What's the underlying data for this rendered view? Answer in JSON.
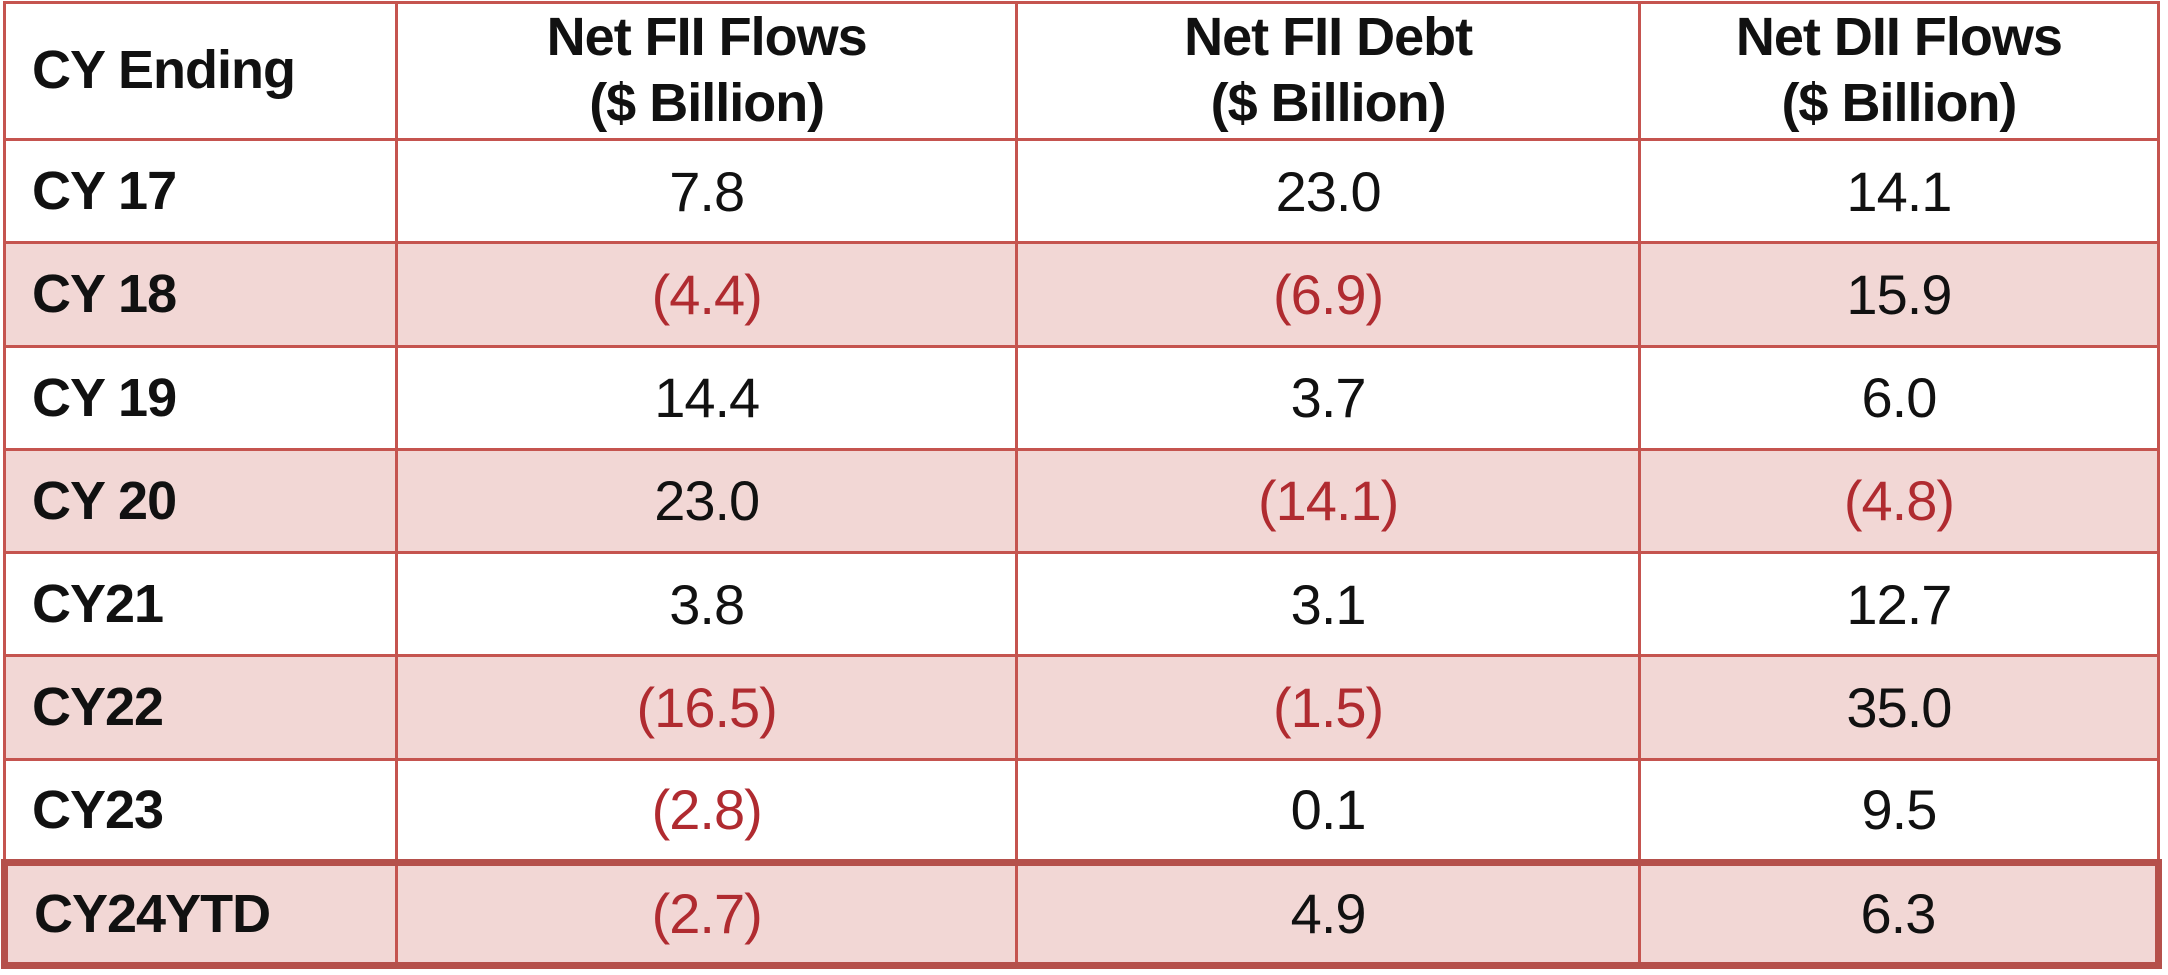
{
  "colors": {
    "grid": "#C5544F",
    "row_tint": "#F2D7D5",
    "negative": "#B02B30",
    "outline_thick": "#B5504B",
    "text": "#111111",
    "background": "#FFFFFF"
  },
  "table": {
    "headers": {
      "cy_ending": "CY Ending",
      "fii_flows_line1": "Net FII Flows",
      "fii_flows_line2": "($ Billion)",
      "fii_debt_line1": "Net FII Debt",
      "fii_debt_line2": "($ Billion)",
      "dii_flows_line1": "Net DII Flows",
      "dii_flows_line2": "($ Billion)"
    },
    "rows": [
      {
        "year": "CY 17",
        "fii_flows": "7.8",
        "fii_debt": "23.0",
        "dii_flows": "14.1"
      },
      {
        "year": "CY 18",
        "fii_flows": "(4.4)",
        "fii_debt": "(6.9)",
        "dii_flows": "15.9"
      },
      {
        "year": "CY 19",
        "fii_flows": "14.4",
        "fii_debt": "3.7",
        "dii_flows": "6.0"
      },
      {
        "year": "CY 20",
        "fii_flows": "23.0",
        "fii_debt": "(14.1)",
        "dii_flows": "(4.8)"
      },
      {
        "year": "CY21",
        "fii_flows": "3.8",
        "fii_debt": "3.1",
        "dii_flows": "12.7"
      },
      {
        "year": "CY22",
        "fii_flows": "(16.5)",
        "fii_debt": "(1.5)",
        "dii_flows": "35.0"
      },
      {
        "year": "CY23",
        "fii_flows": "(2.8)",
        "fii_debt": "0.1",
        "dii_flows": "9.5"
      },
      {
        "year": "CY24YTD",
        "fii_flows": "(2.7)",
        "fii_debt": "4.9",
        "dii_flows": "6.3"
      }
    ]
  },
  "chart_data": {
    "type": "table",
    "columns": [
      "CY Ending",
      "Net FII Flows ($ Billion)",
      "Net FII Debt ($ Billion)",
      "Net DII Flows ($ Billion)"
    ],
    "rows": [
      [
        "CY 17",
        7.8,
        23.0,
        14.1
      ],
      [
        "CY 18",
        -4.4,
        -6.9,
        15.9
      ],
      [
        "CY 19",
        14.4,
        3.7,
        6.0
      ],
      [
        "CY 20",
        23.0,
        -14.1,
        -4.8
      ],
      [
        "CY21",
        3.8,
        3.1,
        12.7
      ],
      [
        "CY22",
        -16.5,
        -1.5,
        35.0
      ],
      [
        "CY23",
        -2.8,
        0.1,
        9.5
      ],
      [
        "CY24YTD",
        -2.7,
        4.9,
        6.3
      ]
    ],
    "notes": "Negative values rendered in parentheses with red text; alternating rows tinted light red; last row (CY24YTD) outlined with thick dark-red border"
  }
}
